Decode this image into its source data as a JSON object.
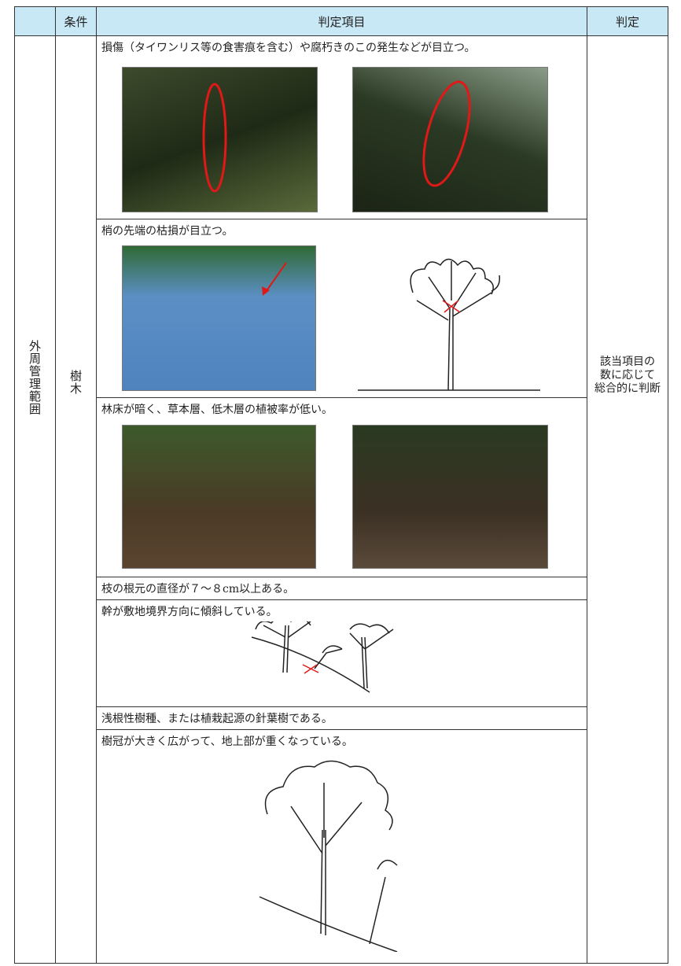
{
  "table": {
    "header": [
      "条件",
      "判定項目",
      "判定"
    ],
    "category": "外周管理範囲",
    "condition": "樹木",
    "items": [
      "損傷（タイワンリス等の食害痕を含む）や腐朽きのこの発生などが目立つ。",
      "梢の先端の枯損が目立つ。",
      "林床が暗く、草本層、低木層の植被率が低い。",
      "枝の根元の直径が７～８cm以上ある。",
      "幹が敷地境界方向に傾斜している。",
      "浅根性樹種、または植栽起源の針葉樹である。",
      "樹冠が大きく広がって、地上部が重くなっている。"
    ],
    "judgement": [
      "該当項目の",
      "数に応じて",
      "総合的に判断"
    ]
  }
}
